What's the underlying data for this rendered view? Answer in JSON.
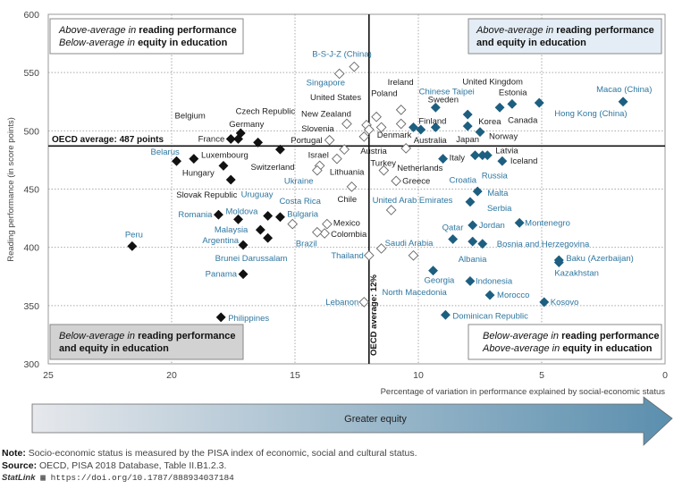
{
  "chart_data": {
    "type": "scatter",
    "xlabel": "Percentage of variation in performance explained by social-economic status",
    "ylabel": "Reading performance (in score points)",
    "xlim": [
      25,
      0
    ],
    "ylim": [
      300,
      600
    ],
    "x_reversed": true,
    "x_ticks": [
      "25",
      "20",
      "15",
      "10",
      "5",
      "0"
    ],
    "y_ticks": [
      "600",
      "550",
      "500",
      "450",
      "400",
      "350",
      "300"
    ],
    "grid": "dotted",
    "reference_lines": {
      "horizontal": {
        "value": 487,
        "label": "OECD average: 487 points"
      },
      "vertical": {
        "value": 12,
        "label": "OECD average: 12%"
      }
    },
    "quadrants": {
      "top_left": {
        "line1_italic": "Above-average in",
        "line1_bold": "reading performance",
        "line2_italic": "Below-average in",
        "line2_bold": "equity in education"
      },
      "top_right": {
        "line1_italic": "Above-average in",
        "line1_bold": "reading performance",
        "line2_bold": "and equity in education"
      },
      "bottom_left": {
        "line1_italic": "Below-average in",
        "line1_bold": "reading performance",
        "line2_bold": "and equity in education"
      },
      "bottom_right": {
        "line1_italic": "Below-average in",
        "line1_bold": "reading performance",
        "line2_italic": "Above-average in",
        "line2_bold": "equity in education"
      }
    },
    "marker_colors": {
      "black": "#111111",
      "blue": "#1d5f80",
      "hollow": "#ffffff"
    },
    "label_colors": {
      "oecd": "#222222",
      "partner": "#2f77a0"
    },
    "points": [
      {
        "label": "B-S-J-Z (China)",
        "x": 12.6,
        "y": 555,
        "marker": "hollow",
        "lc": "partner"
      },
      {
        "label": "Singapore",
        "x": 13.2,
        "y": 549,
        "marker": "hollow",
        "lc": "partner"
      },
      {
        "label": "United States",
        "x": 12.1,
        "y": 505,
        "marker": "hollow",
        "lc": "oecd"
      },
      {
        "label": "New Zealand",
        "x": 12.9,
        "y": 506,
        "marker": "hollow",
        "lc": "oecd"
      },
      {
        "label": "Slovenia",
        "x": 12.2,
        "y": 495,
        "marker": "hollow",
        "lc": "oecd"
      },
      {
        "label": "Portugal",
        "x": 13.6,
        "y": 492,
        "marker": "hollow",
        "lc": "oecd"
      },
      {
        "label": "Austria",
        "x": 13.0,
        "y": 484,
        "marker": "hollow",
        "lc": "oecd"
      },
      {
        "label": "Israel",
        "x": 14.0,
        "y": 470,
        "marker": "hollow",
        "lc": "oecd"
      },
      {
        "label": "Ukraine",
        "x": 14.1,
        "y": 466,
        "marker": "hollow",
        "lc": "partner"
      },
      {
        "label": "Lithuania",
        "x": 13.3,
        "y": 476,
        "marker": "hollow",
        "lc": "oecd"
      },
      {
        "label": "Chile",
        "x": 12.7,
        "y": 452,
        "marker": "hollow",
        "lc": "oecd"
      },
      {
        "label": "Poland",
        "x": 11.7,
        "y": 512,
        "marker": "hollow",
        "lc": "oecd"
      },
      {
        "label": "Ireland",
        "x": 10.7,
        "y": 518,
        "marker": "hollow",
        "lc": "oecd"
      },
      {
        "label": "Chinese Taipei",
        "x": 11.5,
        "y": 503,
        "marker": "hollow",
        "lc": "partner"
      },
      {
        "label": "Sweden",
        "x": 10.7,
        "y": 506,
        "marker": "hollow",
        "lc": "oecd"
      },
      {
        "label": "Denmark",
        "x": 12.0,
        "y": 501,
        "marker": "hollow",
        "lc": "oecd"
      },
      {
        "label": "Netherlands",
        "x": 10.5,
        "y": 485,
        "marker": "hollow",
        "lc": "oecd"
      },
      {
        "label": "Turkey",
        "x": 11.4,
        "y": 466,
        "marker": "hollow",
        "lc": "oecd"
      },
      {
        "label": "Greece",
        "x": 10.9,
        "y": 457,
        "marker": "hollow",
        "lc": "oecd"
      },
      {
        "label": "United Arab Emirates",
        "x": 11.1,
        "y": 432,
        "marker": "hollow",
        "lc": "partner"
      },
      {
        "label": "Saudi Arabia",
        "x": 11.5,
        "y": 399,
        "marker": "hollow",
        "lc": "partner"
      },
      {
        "label": "Thailand",
        "x": 12.0,
        "y": 393,
        "marker": "hollow",
        "lc": "partner"
      },
      {
        "label": "North Macedonia",
        "x": 10.2,
        "y": 393,
        "marker": "hollow",
        "lc": "partner"
      },
      {
        "label": "Lebanon",
        "x": 12.2,
        "y": 353,
        "marker": "hollow",
        "lc": "partner"
      },
      {
        "label": "Bulgaria",
        "x": 15.1,
        "y": 420,
        "marker": "hollow",
        "lc": "partner"
      },
      {
        "label": "Mexico",
        "x": 13.7,
        "y": 420,
        "marker": "hollow",
        "lc": "oecd"
      },
      {
        "label": "Colombia",
        "x": 13.8,
        "y": 412,
        "marker": "hollow",
        "lc": "oecd"
      },
      {
        "label": "Brazil",
        "x": 14.1,
        "y": 413,
        "marker": "hollow",
        "lc": "partner"
      },
      {
        "label": "France",
        "x": 17.6,
        "y": 493,
        "marker": "black",
        "lc": "oecd"
      },
      {
        "label": "Belgium",
        "x": 17.3,
        "y": 493,
        "marker": "black",
        "lc": "oecd"
      },
      {
        "label": "Germany",
        "x": 17.2,
        "y": 498,
        "marker": "black",
        "lc": "oecd"
      },
      {
        "label": "Czech Republic",
        "x": 16.5,
        "y": 490,
        "marker": "black",
        "lc": "oecd"
      },
      {
        "label": "Switzerland",
        "x": 15.6,
        "y": 484,
        "marker": "black",
        "lc": "oecd"
      },
      {
        "label": "Belarus",
        "x": 19.8,
        "y": 474,
        "marker": "black",
        "lc": "partner"
      },
      {
        "label": "Hungary",
        "x": 19.1,
        "y": 476,
        "marker": "black",
        "lc": "oecd"
      },
      {
        "label": "Luxembourg",
        "x": 17.9,
        "y": 470,
        "marker": "black",
        "lc": "oecd"
      },
      {
        "label": "Slovak Republic",
        "x": 17.6,
        "y": 458,
        "marker": "black",
        "lc": "oecd"
      },
      {
        "label": "Romania",
        "x": 18.1,
        "y": 428,
        "marker": "black",
        "lc": "partner"
      },
      {
        "label": "Moldova",
        "x": 17.3,
        "y": 424,
        "marker": "black",
        "lc": "partner"
      },
      {
        "label": "Uruguay",
        "x": 16.1,
        "y": 427,
        "marker": "black",
        "lc": "partner"
      },
      {
        "label": "Costa Rica",
        "x": 15.6,
        "y": 426,
        "marker": "black",
        "lc": "partner"
      },
      {
        "label": "Malaysia",
        "x": 16.4,
        "y": 415,
        "marker": "black",
        "lc": "partner"
      },
      {
        "label": "Brunei Darussalam",
        "x": 16.1,
        "y": 408,
        "marker": "black",
        "lc": "partner"
      },
      {
        "label": "Argentina",
        "x": 17.1,
        "y": 402,
        "marker": "black",
        "lc": "partner"
      },
      {
        "label": "Peru",
        "x": 21.6,
        "y": 401,
        "marker": "black",
        "lc": "partner"
      },
      {
        "label": "Panama",
        "x": 17.1,
        "y": 377,
        "marker": "black",
        "lc": "partner"
      },
      {
        "label": "Philippines",
        "x": 18.0,
        "y": 340,
        "marker": "black",
        "lc": "partner"
      },
      {
        "label": "United Kingdom",
        "x": 9.3,
        "y": 520,
        "marker": "blue",
        "lc": "oecd"
      },
      {
        "label": "Finland",
        "x": 9.3,
        "y": 503,
        "marker": "blue",
        "lc": "oecd"
      },
      {
        "label": "",
        "x": 10.2,
        "y": 503,
        "marker": "blue",
        "lc": "oecd"
      },
      {
        "label": "Australia",
        "x": 9.9,
        "y": 501,
        "marker": "blue",
        "lc": "oecd"
      },
      {
        "label": "Korea",
        "x": 8.0,
        "y": 514,
        "marker": "blue",
        "lc": "oecd"
      },
      {
        "label": "Japan",
        "x": 8.0,
        "y": 504,
        "marker": "blue",
        "lc": "oecd"
      },
      {
        "label": "Norway",
        "x": 7.5,
        "y": 499,
        "marker": "blue",
        "lc": "oecd"
      },
      {
        "label": "Estonia",
        "x": 6.2,
        "y": 523,
        "marker": "blue",
        "lc": "oecd"
      },
      {
        "label": "Canada",
        "x": 6.7,
        "y": 520,
        "marker": "blue",
        "lc": "oecd"
      },
      {
        "label": "Hong Kong (China)",
        "x": 5.1,
        "y": 524,
        "marker": "blue",
        "lc": "partner"
      },
      {
        "label": "Macao (China)",
        "x": 1.7,
        "y": 525,
        "marker": "blue",
        "lc": "partner"
      },
      {
        "label": "Italy",
        "x": 9.0,
        "y": 476,
        "marker": "blue",
        "lc": "oecd"
      },
      {
        "label": "Croatia",
        "x": 7.7,
        "y": 479,
        "marker": "blue",
        "lc": "partner"
      },
      {
        "label": "Russia",
        "x": 7.4,
        "y": 479,
        "marker": "blue",
        "lc": "partner"
      },
      {
        "label": "Latvia",
        "x": 7.2,
        "y": 479,
        "marker": "blue",
        "lc": "oecd"
      },
      {
        "label": "Iceland",
        "x": 6.6,
        "y": 474,
        "marker": "blue",
        "lc": "oecd"
      },
      {
        "label": "Malta",
        "x": 7.6,
        "y": 448,
        "marker": "blue",
        "lc": "partner"
      },
      {
        "label": "Serbia",
        "x": 7.9,
        "y": 439,
        "marker": "blue",
        "lc": "partner"
      },
      {
        "label": "Jordan",
        "x": 7.8,
        "y": 419,
        "marker": "blue",
        "lc": "partner"
      },
      {
        "label": "Montenegro",
        "x": 5.9,
        "y": 421,
        "marker": "blue",
        "lc": "partner"
      },
      {
        "label": "Qatar",
        "x": 8.6,
        "y": 407,
        "marker": "blue",
        "lc": "partner"
      },
      {
        "label": "Albania",
        "x": 7.8,
        "y": 405,
        "marker": "blue",
        "lc": "partner"
      },
      {
        "label": "Bosnia and Herzegovina",
        "x": 7.4,
        "y": 403,
        "marker": "blue",
        "lc": "partner"
      },
      {
        "label": "Baku (Azerbaijan)",
        "x": 4.3,
        "y": 389,
        "marker": "blue",
        "lc": "partner"
      },
      {
        "label": "Kazakhstan",
        "x": 4.3,
        "y": 387,
        "marker": "blue",
        "lc": "partner"
      },
      {
        "label": "Georgia",
        "x": 9.4,
        "y": 380,
        "marker": "blue",
        "lc": "partner"
      },
      {
        "label": "Indonesia",
        "x": 7.9,
        "y": 371,
        "marker": "blue",
        "lc": "partner"
      },
      {
        "label": "Morocco",
        "x": 7.1,
        "y": 359,
        "marker": "blue",
        "lc": "partner"
      },
      {
        "label": "Kosovo",
        "x": 4.9,
        "y": 353,
        "marker": "blue",
        "lc": "partner"
      },
      {
        "label": "Dominican Republic",
        "x": 8.9,
        "y": 342,
        "marker": "blue",
        "lc": "partner"
      }
    ]
  },
  "arrow": {
    "label": "Greater equity",
    "color_start": "#e6e8ec",
    "color_end": "#5b8fae"
  },
  "notes": {
    "note_label": "Note:",
    "note_text": "Socio-economic status is measured by the PISA index of economic, social and cultural status.",
    "source_label": "Source:",
    "source_text": "OECD, PISA 2018 Database, Table II.B1.2.3.",
    "statlink_label": "StatLink",
    "statlink_url": "https://doi.org/10.1787/888934037184"
  }
}
